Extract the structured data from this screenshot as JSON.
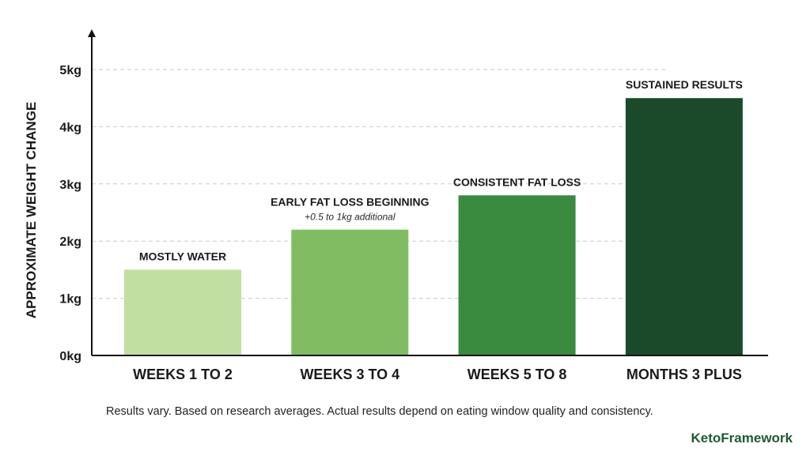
{
  "chart_data": {
    "type": "bar",
    "categories": [
      "WEEKS 1 TO 2",
      "WEEKS 3 TO 4",
      "WEEKS 5 TO 8",
      "MONTHS 3 PLUS"
    ],
    "values": [
      1.5,
      2.2,
      2.8,
      4.5
    ],
    "unit": "kg",
    "ylabel": "APPROXIMATE WEIGHT CHANGE",
    "xlabel": "",
    "ylim": [
      0,
      5
    ],
    "yticks": [
      {
        "value": 0,
        "label": "0kg"
      },
      {
        "value": 1,
        "label": "1kg"
      },
      {
        "value": 2,
        "label": "2kg"
      },
      {
        "value": 3,
        "label": "3kg"
      },
      {
        "value": 4,
        "label": "4kg"
      },
      {
        "value": 5,
        "label": "5kg"
      }
    ],
    "bar_colors": [
      "#c0dfa0",
      "#80bd62",
      "#3a8a40",
      "#1a4a2a"
    ],
    "annotations": [
      {
        "label": "MOSTLY WATER",
        "sublabel": ""
      },
      {
        "label": "EARLY FAT LOSS BEGINNING",
        "sublabel": "+0.5 to 1kg additional"
      },
      {
        "label": "CONSISTENT FAT LOSS",
        "sublabel": ""
      },
      {
        "label": "SUSTAINED RESULTS",
        "sublabel": ""
      }
    ],
    "grid": true,
    "legend": "none"
  },
  "footnote": "Results vary. Based on research averages. Actual results depend on eating window quality and consistency.",
  "brand": "KetoFramework"
}
